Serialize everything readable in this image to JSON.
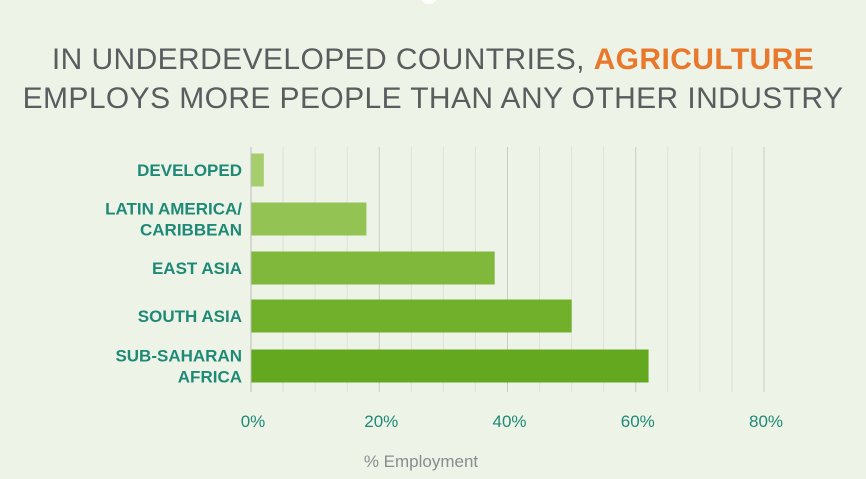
{
  "title": {
    "line1_pre": "IN UNDERDEVELOPED COUNTRIES, ",
    "line1_accent": "AGRICULTURE",
    "line2": "EMPLOYS MORE PEOPLE THAN ANY OTHER INDUSTRY"
  },
  "colors": {
    "background": "#eef3e8",
    "title": "#5a5c5e",
    "accent": "#e8782b",
    "labels": "#1e8a76",
    "bars": [
      "#a6ce6c",
      "#93c352",
      "#7fb83a",
      "#71b02a",
      "#63a81e"
    ]
  },
  "chart_data": {
    "type": "bar",
    "orientation": "horizontal",
    "categories": [
      [
        "DEVELOPED"
      ],
      [
        "LATIN AMERICA/",
        "CARIBBEAN"
      ],
      [
        "EAST ASIA"
      ],
      [
        "SOUTH ASIA"
      ],
      [
        "SUB-SAHARAN",
        "AFRICA"
      ]
    ],
    "values": [
      2,
      18,
      38,
      50,
      62
    ],
    "xlabel": "% Employment",
    "xlim": [
      0,
      80
    ],
    "xticks": [
      "0%",
      "20%",
      "40%",
      "60%",
      "80%"
    ],
    "grid": true
  }
}
